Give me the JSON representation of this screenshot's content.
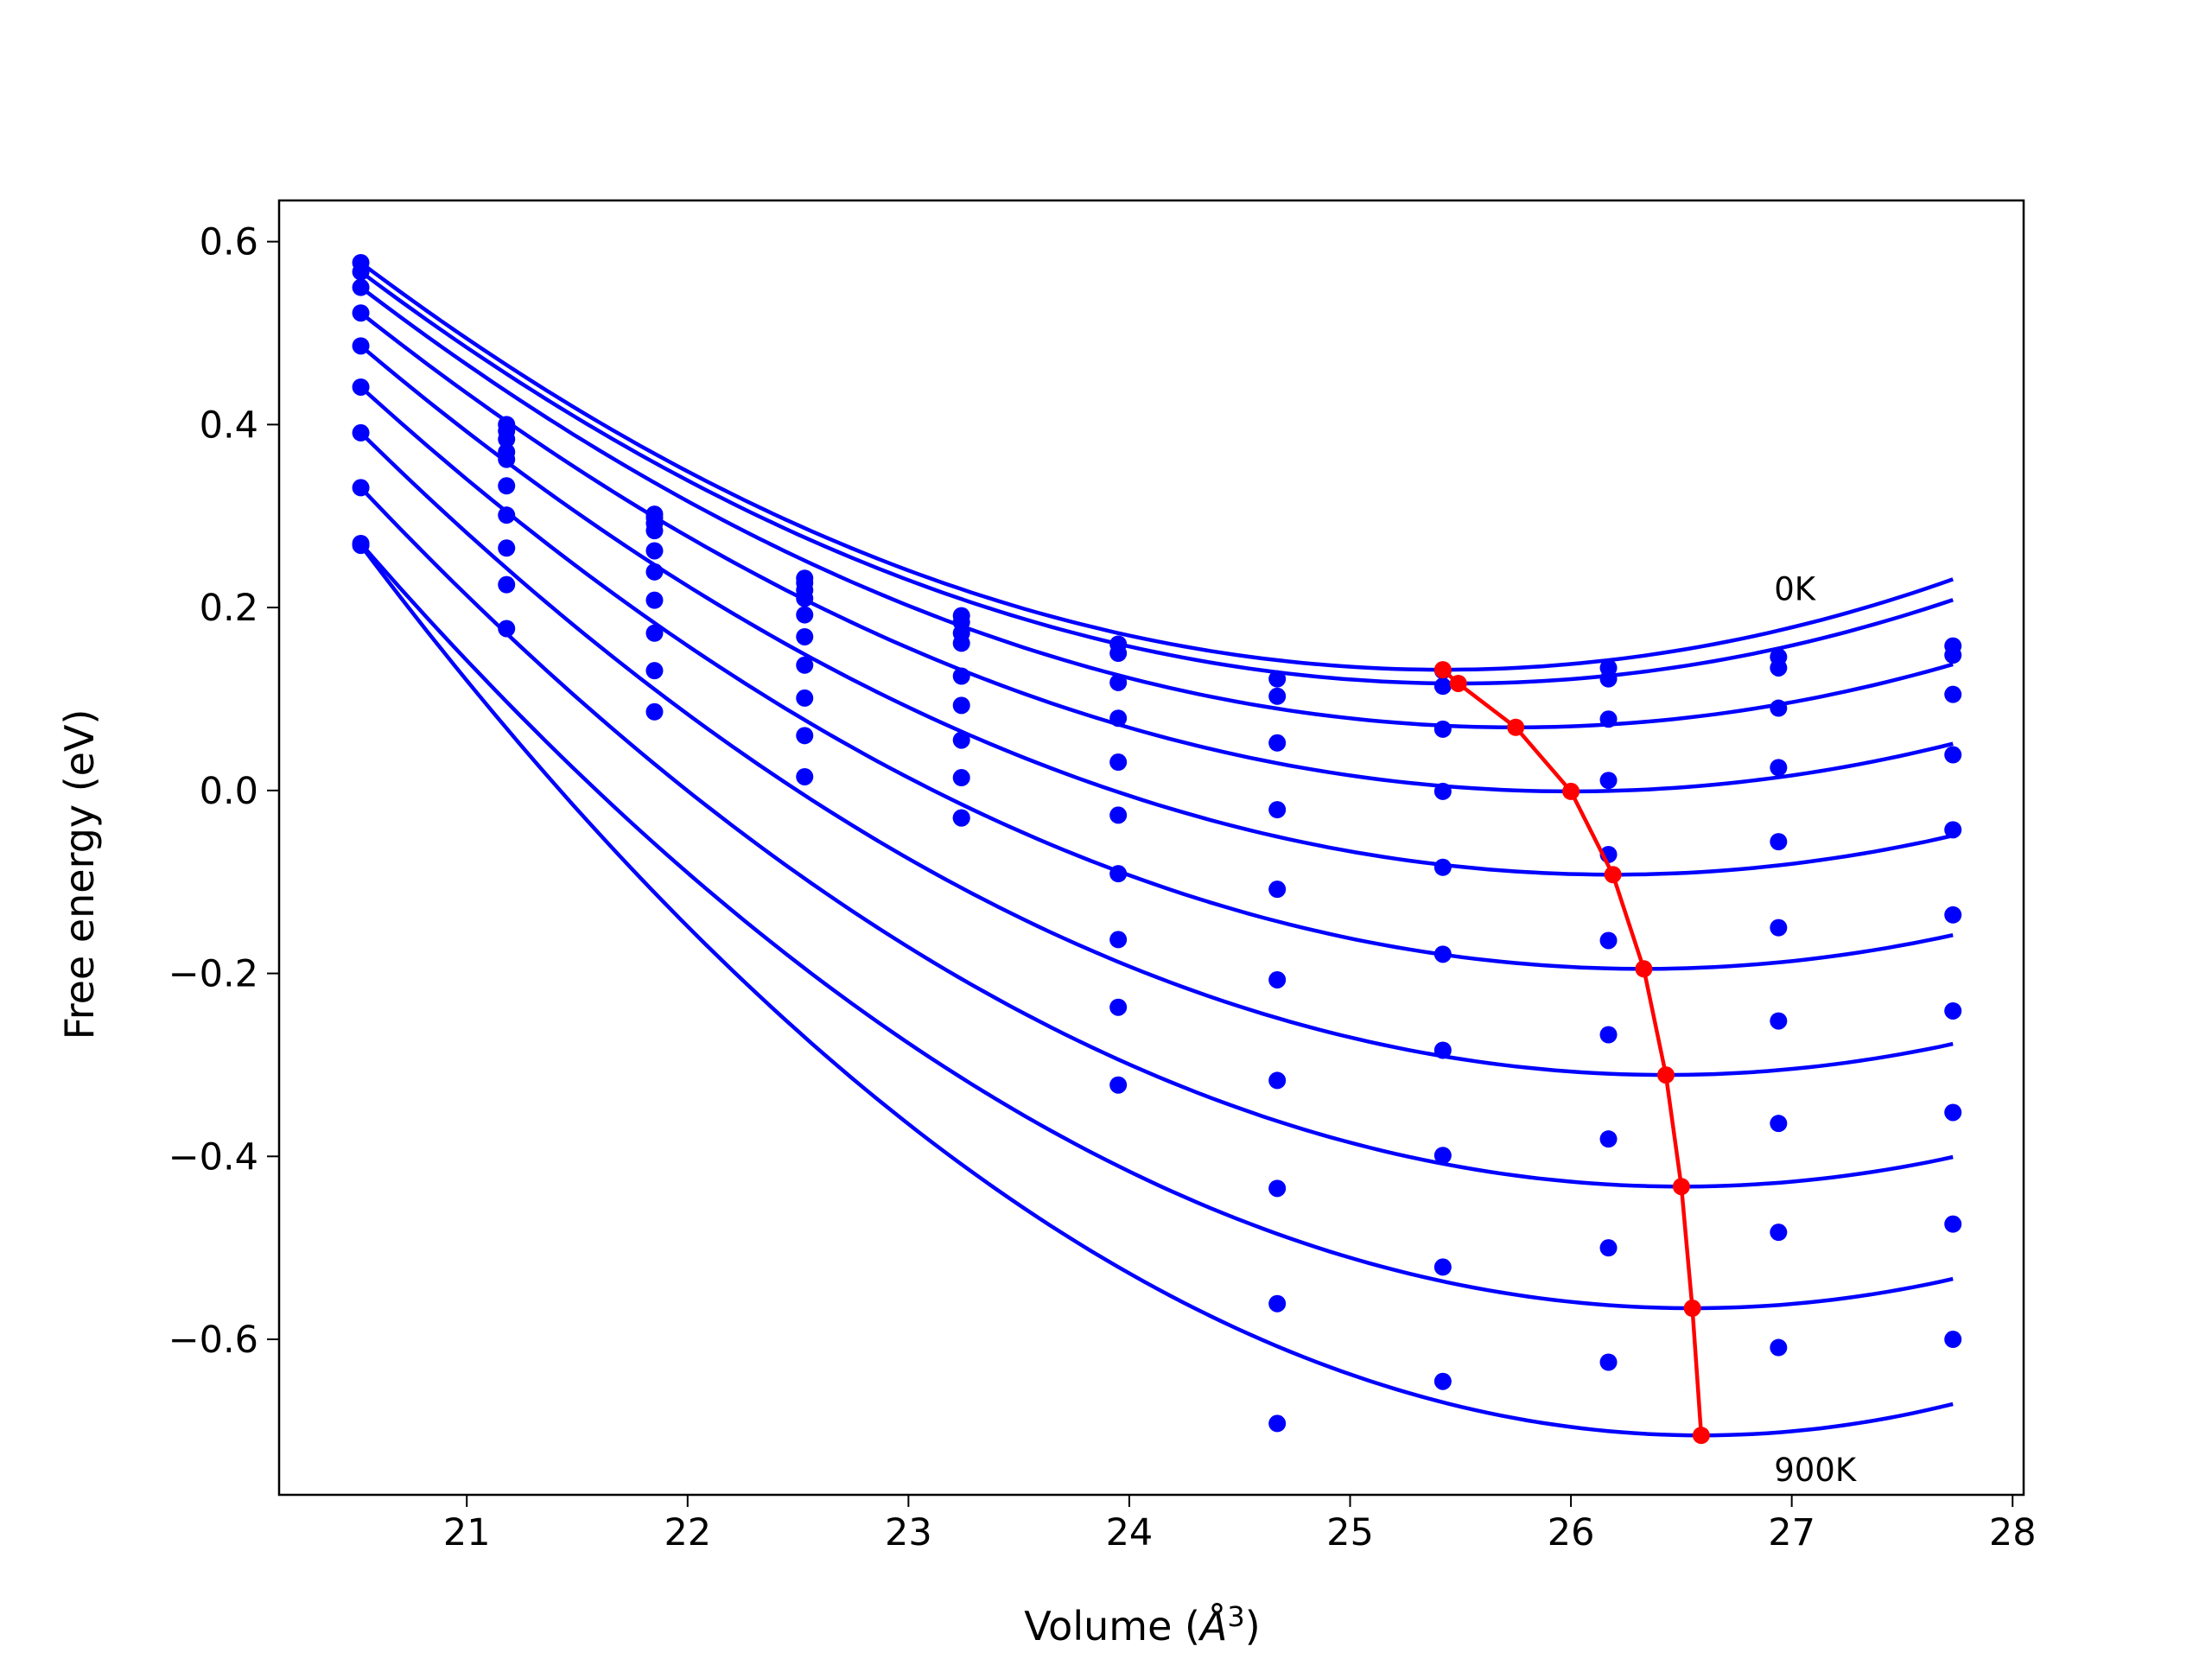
{
  "chart_data": {
    "type": "line",
    "xlabel": "Volume (",
    "xlabel_unit": "Å",
    "xlabel_sup": "3",
    "xlabel_close": ")",
    "ylabel": "Free energy (eV)",
    "xlim": [
      20.15,
      28.05
    ],
    "ylim": [
      -0.77,
      0.645
    ],
    "xticks": [
      21,
      22,
      23,
      24,
      25,
      26,
      27,
      28
    ],
    "xtick_labels": [
      "21",
      "22",
      "23",
      "24",
      "25",
      "26",
      "27",
      "28"
    ],
    "yticks": [
      0.6,
      0.4,
      0.2,
      0.0,
      -0.2,
      -0.4,
      -0.6
    ],
    "ytick_labels": [
      "0.6",
      "0.4",
      "0.2",
      "0.0",
      "−0.2",
      "−0.4",
      "−0.6"
    ],
    "grid": false,
    "colors": {
      "fit": "#0000ff",
      "points": "#0000ff",
      "minimum": "#ff0000",
      "frame": "#000000"
    },
    "annotations": [
      {
        "text": "0K",
        "x": 26.92,
        "y": 0.208
      },
      {
        "text": "900K",
        "x": 26.92,
        "y": -0.755
      }
    ],
    "volumes": [
      20.52,
      21.18,
      21.85,
      22.53,
      23.24,
      23.95,
      24.67,
      25.42,
      26.17,
      26.94,
      27.73
    ],
    "series": [
      {
        "min_v": 25.42,
        "min_f": 0.132,
        "points": [
          0.577,
          0.4,
          0.302,
          0.232,
          0.191,
          0.16,
          0.122,
          0.131,
          0.134,
          0.146,
          0.158
        ]
      },
      {
        "min_v": 25.49,
        "min_f": 0.117,
        "points": [
          0.567,
          0.393,
          0.298,
          0.227,
          0.184,
          0.15,
          0.103,
          0.114,
          0.122,
          0.134,
          0.148
        ]
      },
      {
        "min_v": 25.75,
        "min_f": 0.069,
        "points": [
          0.55,
          0.384,
          0.292,
          0.219,
          0.172,
          0.118,
          0.052,
          0.067,
          0.078,
          0.09,
          0.105
        ]
      },
      {
        "min_v": 26.0,
        "min_f": -0.001,
        "points": [
          0.522,
          0.37,
          0.284,
          0.21,
          0.161,
          0.079,
          -0.021,
          -0.001,
          0.011,
          0.025,
          0.039
        ]
      },
      {
        "min_v": 26.19,
        "min_f": -0.092,
        "points": [
          0.486,
          0.362,
          0.262,
          0.192,
          0.125,
          0.031,
          -0.108,
          -0.084,
          -0.07,
          -0.056,
          -0.043
        ]
      },
      {
        "min_v": 26.33,
        "min_f": -0.195,
        "points": [
          0.441,
          0.333,
          0.239,
          0.168,
          0.093,
          -0.027,
          -0.207,
          -0.179,
          -0.164,
          -0.15,
          -0.136
        ]
      },
      {
        "min_v": 26.43,
        "min_f": -0.311,
        "points": [
          0.391,
          0.301,
          0.208,
          0.137,
          0.055,
          -0.091,
          -0.317,
          -0.284,
          -0.267,
          -0.252,
          -0.241
        ]
      },
      {
        "min_v": 26.5,
        "min_f": -0.433,
        "points": [
          0.331,
          0.265,
          0.172,
          0.101,
          0.014,
          -0.163,
          -0.435,
          -0.399,
          -0.381,
          -0.364,
          -0.352
        ]
      },
      {
        "min_v": 26.55,
        "min_f": -0.566,
        "points": [
          0.27,
          0.225,
          0.131,
          0.06,
          -0.03,
          -0.237,
          -0.561,
          -0.521,
          -0.5,
          -0.483,
          -0.474
        ]
      },
      {
        "min_v": 26.59,
        "min_f": -0.705,
        "points": [
          0.268,
          0.177,
          0.086,
          0.015,
          -0.03,
          -0.322,
          -0.692,
          -0.646,
          -0.625,
          -0.609,
          -0.6
        ]
      }
    ]
  }
}
